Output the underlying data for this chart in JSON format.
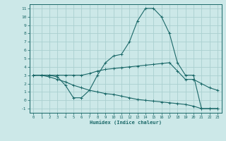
{
  "xlabel": "Humidex (Indice chaleur)",
  "bg_color": "#cce8e8",
  "grid_color": "#aad0d0",
  "line_color": "#1a6868",
  "xlim": [
    -0.5,
    23.5
  ],
  "ylim": [
    -1.5,
    11.5
  ],
  "xticks": [
    0,
    1,
    2,
    3,
    4,
    5,
    6,
    7,
    8,
    9,
    10,
    11,
    12,
    13,
    14,
    15,
    16,
    17,
    18,
    19,
    20,
    21,
    22,
    23
  ],
  "yticks": [
    -1,
    0,
    1,
    2,
    3,
    4,
    5,
    6,
    7,
    8,
    9,
    10,
    11
  ],
  "curve1_x": [
    0,
    1,
    2,
    3,
    4,
    5,
    6,
    7,
    8,
    9,
    10,
    11,
    12,
    13,
    14,
    15,
    16,
    17,
    18,
    19,
    20,
    21,
    22,
    23
  ],
  "curve1_y": [
    3.0,
    3.0,
    3.0,
    2.8,
    1.8,
    0.3,
    0.3,
    1.2,
    3.0,
    4.5,
    5.3,
    5.5,
    7.0,
    9.5,
    11.0,
    11.0,
    10.0,
    8.0,
    4.5,
    3.0,
    3.0,
    -1.0,
    -1.0,
    -1.0
  ],
  "curve2_x": [
    0,
    1,
    2,
    3,
    4,
    5,
    6,
    7,
    8,
    9,
    10,
    11,
    12,
    13,
    14,
    15,
    16,
    17,
    18,
    19,
    20,
    21,
    22,
    23
  ],
  "curve2_y": [
    3.0,
    3.0,
    3.0,
    3.0,
    3.0,
    3.0,
    3.0,
    3.2,
    3.5,
    3.7,
    3.8,
    3.9,
    4.0,
    4.1,
    4.2,
    4.3,
    4.4,
    4.5,
    3.5,
    2.5,
    2.5,
    2.0,
    1.5,
    1.2
  ],
  "curve3_x": [
    0,
    1,
    2,
    3,
    4,
    5,
    6,
    7,
    8,
    9,
    10,
    11,
    12,
    13,
    14,
    15,
    16,
    17,
    18,
    19,
    20,
    21,
    22,
    23
  ],
  "curve3_y": [
    3.0,
    3.0,
    2.8,
    2.5,
    2.2,
    1.8,
    1.5,
    1.2,
    1.0,
    0.8,
    0.7,
    0.5,
    0.3,
    0.1,
    0.0,
    -0.1,
    -0.2,
    -0.3,
    -0.4,
    -0.5,
    -0.7,
    -1.0,
    -1.0,
    -1.0
  ]
}
